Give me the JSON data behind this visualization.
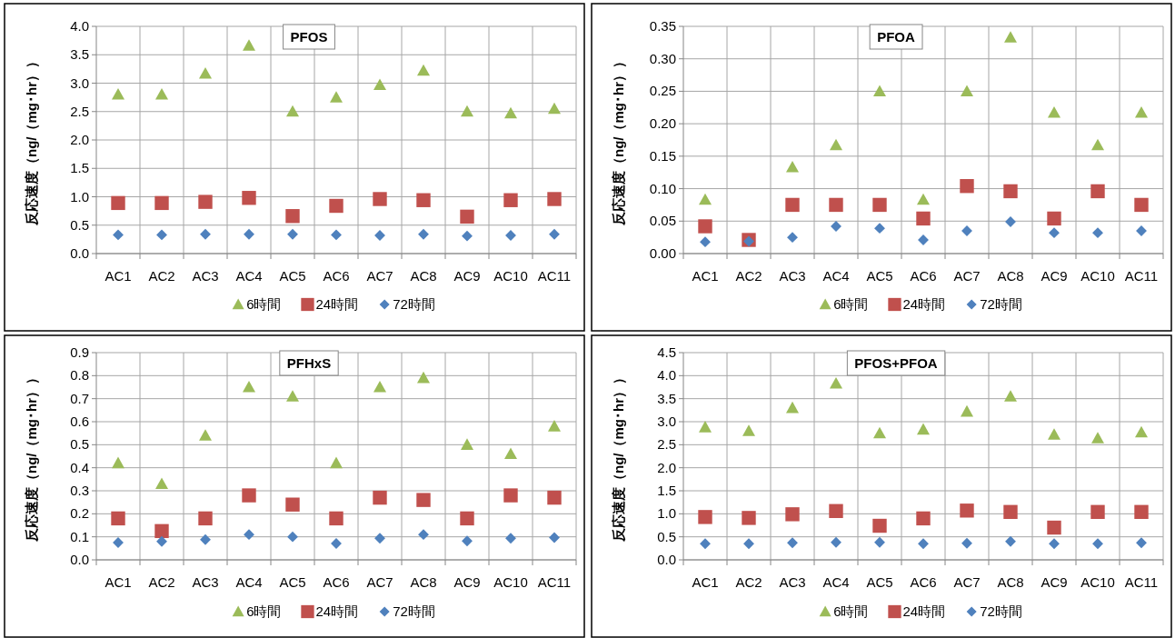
{
  "chart_data": [
    {
      "type": "scatter",
      "title": "PFOS",
      "ylabel": "反応速度（ng/（mg･hr））",
      "categories": [
        "AC1",
        "AC2",
        "AC3",
        "AC4",
        "AC5",
        "AC6",
        "AC7",
        "AC8",
        "AC9",
        "AC10",
        "AC11"
      ],
      "ylim": [
        0,
        4
      ],
      "yticks": [
        {
          "value": 0,
          "label": "0.0"
        },
        {
          "value": 0.5,
          "label": "0.5"
        },
        {
          "value": 1,
          "label": "1.0"
        },
        {
          "value": 1.5,
          "label": "1.5"
        },
        {
          "value": 2,
          "label": "2.0"
        },
        {
          "value": 2.5,
          "label": "2.5"
        },
        {
          "value": 3,
          "label": "3.0"
        },
        {
          "value": 3.5,
          "label": "3.5"
        },
        {
          "value": 4,
          "label": "4.0"
        }
      ],
      "grid": true,
      "legend": "bottom",
      "series": [
        {
          "name": "6時間",
          "color": "#9bbb59",
          "marker": "triangle",
          "values": [
            2.8,
            2.8,
            3.17,
            3.66,
            2.5,
            2.75,
            2.97,
            3.22,
            2.5,
            2.47,
            2.55
          ]
        },
        {
          "name": "24時間",
          "color": "#c0504d",
          "marker": "square",
          "values": [
            0.89,
            0.89,
            0.91,
            0.98,
            0.66,
            0.84,
            0.96,
            0.94,
            0.65,
            0.94,
            0.96
          ]
        },
        {
          "name": "72時間",
          "color": "#4f81bd",
          "marker": "diamond",
          "values": [
            0.33,
            0.33,
            0.34,
            0.34,
            0.34,
            0.33,
            0.32,
            0.34,
            0.31,
            0.32,
            0.34
          ]
        }
      ]
    },
    {
      "type": "scatter",
      "title": "PFOA",
      "ylabel": "反応速度（ng/（mg･hr））",
      "categories": [
        "AC1",
        "AC2",
        "AC3",
        "AC4",
        "AC5",
        "AC6",
        "AC7",
        "AC8",
        "AC9",
        "AC10",
        "AC11"
      ],
      "ylim": [
        0,
        0.35
      ],
      "yticks": [
        {
          "value": 0,
          "label": "0.00"
        },
        {
          "value": 0.05,
          "label": "0.05"
        },
        {
          "value": 0.1,
          "label": "0.10"
        },
        {
          "value": 0.15,
          "label": "0.15"
        },
        {
          "value": 0.2,
          "label": "0.20"
        },
        {
          "value": 0.25,
          "label": "0.25"
        },
        {
          "value": 0.3,
          "label": "0.30"
        },
        {
          "value": 0.35,
          "label": "0.35"
        }
      ],
      "grid": true,
      "legend": "bottom",
      "series": [
        {
          "name": "6時間",
          "color": "#9bbb59",
          "marker": "triangle",
          "values": [
            0.083,
            null,
            0.133,
            0.167,
            0.25,
            0.083,
            0.25,
            0.333,
            0.217,
            0.167,
            0.217
          ]
        },
        {
          "name": "24時間",
          "color": "#c0504d",
          "marker": "square",
          "values": [
            0.042,
            0.021,
            0.075,
            0.075,
            0.075,
            0.054,
            0.104,
            0.096,
            0.054,
            0.096,
            0.075
          ]
        },
        {
          "name": "72時間",
          "color": "#4f81bd",
          "marker": "diamond",
          "values": [
            0.018,
            0.019,
            0.025,
            0.042,
            0.039,
            0.021,
            0.035,
            0.049,
            0.032,
            0.032,
            0.035
          ]
        }
      ]
    },
    {
      "type": "scatter",
      "title": "PFHxS",
      "ylabel": "反応速度（ng/（mg･hr））",
      "categories": [
        "AC1",
        "AC2",
        "AC3",
        "AC4",
        "AC5",
        "AC6",
        "AC7",
        "AC8",
        "AC9",
        "AC10",
        "AC11"
      ],
      "ylim": [
        0,
        0.9
      ],
      "yticks": [
        {
          "value": 0,
          "label": "0.0"
        },
        {
          "value": 0.1,
          "label": "0.1"
        },
        {
          "value": 0.2,
          "label": "0.2"
        },
        {
          "value": 0.3,
          "label": "0.3"
        },
        {
          "value": 0.4,
          "label": "0.4"
        },
        {
          "value": 0.5,
          "label": "0.5"
        },
        {
          "value": 0.6,
          "label": "0.6"
        },
        {
          "value": 0.7,
          "label": "0.7"
        },
        {
          "value": 0.8,
          "label": "0.8"
        },
        {
          "value": 0.9,
          "label": "0.9"
        }
      ],
      "grid": true,
      "legend": "bottom",
      "series": [
        {
          "name": "6時間",
          "color": "#9bbb59",
          "marker": "triangle",
          "values": [
            0.42,
            0.33,
            0.54,
            0.75,
            0.71,
            0.42,
            0.75,
            0.79,
            0.5,
            0.46,
            0.58
          ]
        },
        {
          "name": "24時間",
          "color": "#c0504d",
          "marker": "square",
          "values": [
            0.18,
            0.125,
            0.18,
            0.28,
            0.24,
            0.18,
            0.27,
            0.26,
            0.18,
            0.28,
            0.27
          ]
        },
        {
          "name": "72時間",
          "color": "#4f81bd",
          "marker": "diamond",
          "values": [
            0.075,
            0.08,
            0.088,
            0.11,
            0.1,
            0.071,
            0.094,
            0.11,
            0.082,
            0.094,
            0.097
          ]
        }
      ]
    },
    {
      "type": "scatter",
      "title": "PFOS+PFOA",
      "ylabel": "反応速度（ng/（mg･hr））",
      "categories": [
        "AC1",
        "AC2",
        "AC3",
        "AC4",
        "AC5",
        "AC6",
        "AC7",
        "AC8",
        "AC9",
        "AC10",
        "AC11"
      ],
      "ylim": [
        0,
        4.5
      ],
      "yticks": [
        {
          "value": 0,
          "label": "0.0"
        },
        {
          "value": 0.5,
          "label": "0.5"
        },
        {
          "value": 1,
          "label": "1.0"
        },
        {
          "value": 1.5,
          "label": "1.5"
        },
        {
          "value": 2,
          "label": "2.0"
        },
        {
          "value": 2.5,
          "label": "2.5"
        },
        {
          "value": 3,
          "label": "3.0"
        },
        {
          "value": 3.5,
          "label": "3.5"
        },
        {
          "value": 4,
          "label": "4.0"
        },
        {
          "value": 4.5,
          "label": "4.5"
        }
      ],
      "grid": true,
      "legend": "bottom",
      "series": [
        {
          "name": "6時間",
          "color": "#9bbb59",
          "marker": "triangle",
          "values": [
            2.88,
            2.8,
            3.3,
            3.83,
            2.75,
            2.83,
            3.22,
            3.55,
            2.72,
            2.64,
            2.77
          ]
        },
        {
          "name": "24時間",
          "color": "#c0504d",
          "marker": "square",
          "values": [
            0.93,
            0.91,
            0.99,
            1.06,
            0.74,
            0.9,
            1.07,
            1.04,
            0.7,
            1.04,
            1.04
          ]
        },
        {
          "name": "72時間",
          "color": "#4f81bd",
          "marker": "diamond",
          "values": [
            0.35,
            0.35,
            0.37,
            0.38,
            0.38,
            0.35,
            0.36,
            0.4,
            0.35,
            0.35,
            0.37
          ]
        }
      ]
    }
  ]
}
